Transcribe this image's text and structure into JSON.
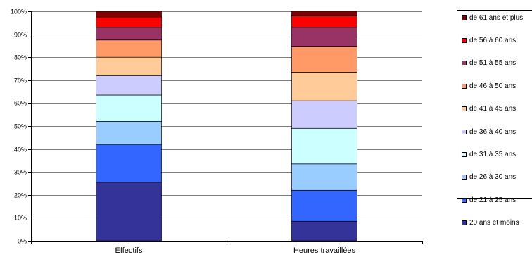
{
  "chart_data": {
    "type": "bar",
    "stacked": true,
    "categories": [
      "Effectifs",
      "Heures travaillées"
    ],
    "ylim": [
      0,
      100
    ],
    "y_ticks": [
      "0%",
      "10%",
      "20%",
      "30%",
      "40%",
      "50%",
      "60%",
      "70%",
      "80%",
      "90%",
      "100%"
    ],
    "legend_position": "right",
    "series": [
      {
        "name": "20 ans et moins",
        "color": "#333399",
        "values": [
          25.5,
          8.5
        ]
      },
      {
        "name": "de 21 à 25 ans",
        "color": "#3366FF",
        "values": [
          16.5,
          13.5
        ]
      },
      {
        "name": "de 26 à 30 ans",
        "color": "#99CCFF",
        "values": [
          10.0,
          11.5
        ]
      },
      {
        "name": "de 31 à 35 ans",
        "color": "#CCFFFF",
        "values": [
          11.5,
          15.5
        ]
      },
      {
        "name": "de 36 à 40 ans",
        "color": "#CCCCFF",
        "values": [
          8.5,
          12.0
        ]
      },
      {
        "name": "de 41 à 45 ans",
        "color": "#FFCC99",
        "values": [
          8.0,
          12.5
        ]
      },
      {
        "name": "de 46 à 50 ans",
        "color": "#FF9966",
        "values": [
          7.5,
          11.0
        ]
      },
      {
        "name": "de 51 à 55 ans",
        "color": "#993366",
        "values": [
          5.5,
          8.5
        ]
      },
      {
        "name": "de 56 à 60 ans",
        "color": "#FF0000",
        "values": [
          4.5,
          5.0
        ]
      },
      {
        "name": "de 61 ans et plus",
        "color": "#800000",
        "values": [
          2.5,
          2.0
        ]
      }
    ]
  }
}
